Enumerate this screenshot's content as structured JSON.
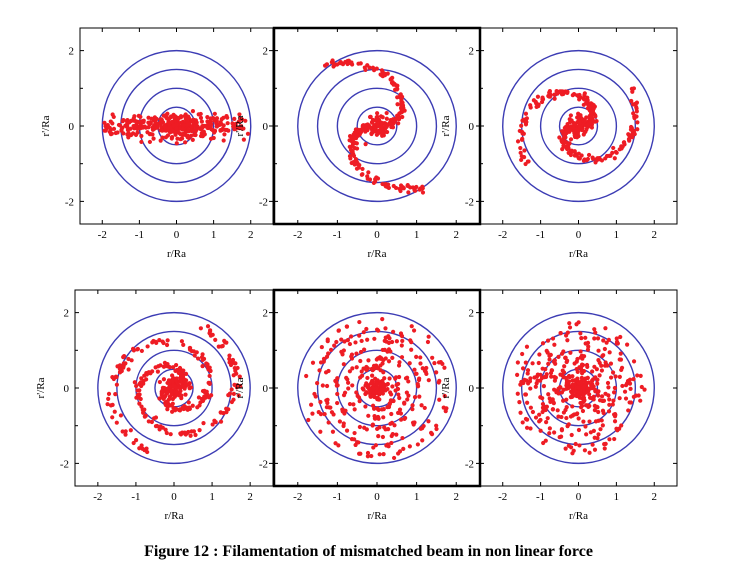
{
  "figure": {
    "caption": "Figure 12 : Filamentation of mismatched beam in non linear force"
  },
  "colors": {
    "rings": "#3c3cb4",
    "particles": "#ee1c24",
    "frame": "#000000"
  },
  "chart_data": [
    {
      "type": "scatter",
      "panel": "top-left",
      "stage": "stretched band",
      "xlabel": "r/Ra",
      "ylabel": "r'/Ra",
      "xlim": [
        -2.6,
        2.6
      ],
      "ylim": [
        -2.6,
        2.6
      ],
      "xticks": [
        -2,
        -1,
        0,
        1,
        2
      ],
      "yticks": [
        -2,
        0,
        2
      ],
      "rings": [
        0.5,
        1.0,
        1.5,
        2.0
      ],
      "legend": "none",
      "grid": false
    },
    {
      "type": "scatter",
      "panel": "top-middle",
      "stage": "spiral arms forming",
      "xlabel": "r/Ra",
      "ylabel": "r'/Ra",
      "xlim": [
        -2.6,
        2.6
      ],
      "ylim": [
        -2.6,
        2.6
      ],
      "xticks": [
        -2,
        -1,
        0,
        1,
        2
      ],
      "yticks": [
        -2,
        0,
        2
      ],
      "rings": [
        0.5,
        1.0,
        1.5,
        2.0
      ],
      "legend": "none",
      "grid": false
    },
    {
      "type": "scatter",
      "panel": "top-right",
      "stage": "tight spiral",
      "xlabel": "r/Ra",
      "ylabel": "r'/Ra",
      "xlim": [
        -2.6,
        2.6
      ],
      "ylim": [
        -2.6,
        2.6
      ],
      "xticks": [
        -2,
        -1,
        0,
        1,
        2
      ],
      "yticks": [
        -2,
        0,
        2
      ],
      "rings": [
        0.5,
        1.0,
        1.5,
        2.0
      ],
      "legend": "none",
      "grid": false
    },
    {
      "type": "scatter",
      "panel": "bottom-left",
      "stage": "multi-turn spiral",
      "xlabel": "r/Ra",
      "ylabel": "r'/Ra",
      "xlim": [
        -2.6,
        2.6
      ],
      "ylim": [
        -2.6,
        2.6
      ],
      "xticks": [
        -2,
        -1,
        0,
        1,
        2
      ],
      "yticks": [
        -2,
        0,
        2
      ],
      "rings": [
        0.5,
        1.0,
        1.5,
        2.0
      ],
      "legend": "none",
      "grid": false
    },
    {
      "type": "scatter",
      "panel": "bottom-middle",
      "stage": "concentric filaments",
      "xlabel": "r/Ra",
      "ylabel": "r'/Ra",
      "xlim": [
        -2.6,
        2.6
      ],
      "ylim": [
        -2.6,
        2.6
      ],
      "xticks": [
        -2,
        -1,
        0,
        1,
        2
      ],
      "yticks": [
        -2,
        0,
        2
      ],
      "rings": [
        0.5,
        1.0,
        1.5,
        2.0
      ],
      "legend": "none",
      "grid": false
    },
    {
      "type": "scatter",
      "panel": "bottom-right",
      "stage": "filamented halo",
      "xlabel": "r/Ra",
      "ylabel": "r'/Ra",
      "xlim": [
        -2.6,
        2.6
      ],
      "ylim": [
        -2.6,
        2.6
      ],
      "xticks": [
        -2,
        -1,
        0,
        1,
        2
      ],
      "yticks": [
        -2,
        0,
        2
      ],
      "rings": [
        0.5,
        1.0,
        1.5,
        2.0
      ],
      "legend": "none",
      "grid": false
    }
  ]
}
